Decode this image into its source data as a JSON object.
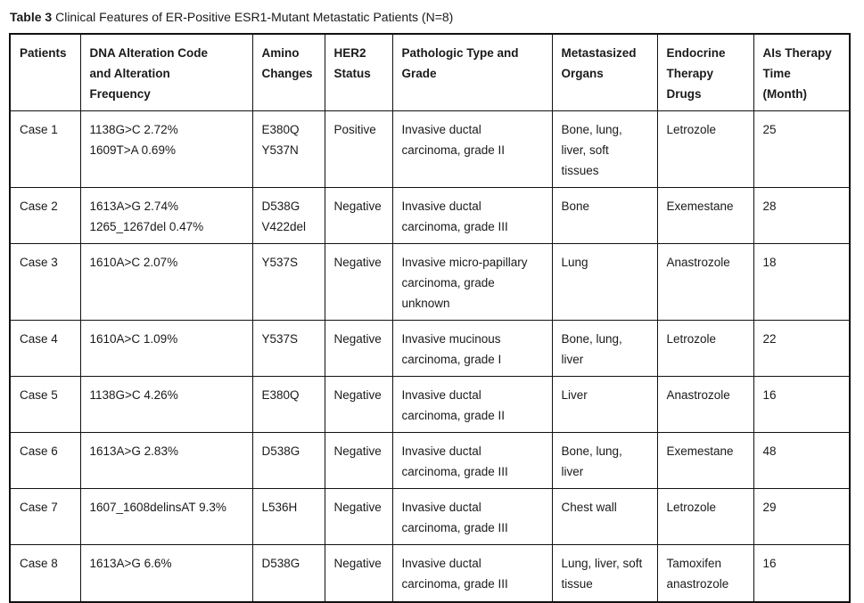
{
  "title": {
    "label": "Table 3",
    "text": "Clinical Features of ER-Positive ESR1-Mutant Metastatic Patients (N=8)"
  },
  "colors": {
    "border": "#111111",
    "text": "#1a1a1a",
    "background": "#ffffff"
  },
  "table": {
    "columns": [
      "Patients",
      "DNA Alteration Code\nand Alteration\nFrequency",
      "Amino\nChanges",
      "HER2\nStatus",
      "Pathologic Type and\nGrade",
      "Metastasized\nOrgans",
      "Endocrine\nTherapy\nDrugs",
      "AIs Therapy\nTime\n(Month)"
    ],
    "column_keys": [
      "patient",
      "dna",
      "amino",
      "her2",
      "pathologic",
      "organs",
      "drugs",
      "time"
    ],
    "rows": [
      {
        "patient": "Case 1",
        "dna": "1138G>C 2.72%\n1609T>A 0.69%",
        "amino": "E380Q\nY537N",
        "her2": "Positive",
        "pathologic": "Invasive ductal\ncarcinoma, grade II",
        "organs": "Bone, lung,\nliver, soft\ntissues",
        "drugs": "Letrozole",
        "time": "25"
      },
      {
        "patient": "Case 2",
        "dna": "1613A>G 2.74%\n1265_1267del 0.47%",
        "amino": "D538G\nV422del",
        "her2": "Negative",
        "pathologic": "Invasive ductal\ncarcinoma, grade III",
        "organs": "Bone",
        "drugs": "Exemestane",
        "time": "28"
      },
      {
        "patient": "Case 3",
        "dna": "1610A>C 2.07%",
        "amino": "Y537S",
        "her2": "Negative",
        "pathologic": "Invasive micro-papillary\ncarcinoma, grade\nunknown",
        "organs": "Lung",
        "drugs": "Anastrozole",
        "time": "18"
      },
      {
        "patient": "Case 4",
        "dna": "1610A>C 1.09%",
        "amino": "Y537S",
        "her2": "Negative",
        "pathologic": "Invasive mucinous\ncarcinoma, grade I",
        "organs": "Bone, lung,\nliver",
        "drugs": "Letrozole",
        "time": "22"
      },
      {
        "patient": "Case 5",
        "dna": "1138G>C 4.26%",
        "amino": "E380Q",
        "her2": "Negative",
        "pathologic": "Invasive ductal\ncarcinoma, grade II",
        "organs": "Liver",
        "drugs": "Anastrozole",
        "time": "16"
      },
      {
        "patient": "Case 6",
        "dna": "1613A>G 2.83%",
        "amino": "D538G",
        "her2": "Negative",
        "pathologic": "Invasive ductal\ncarcinoma, grade III",
        "organs": "Bone, lung,\nliver",
        "drugs": "Exemestane",
        "time": "48"
      },
      {
        "patient": "Case 7",
        "dna": "1607_1608delinsAT 9.3%",
        "amino": "L536H",
        "her2": "Negative",
        "pathologic": "Invasive ductal\ncarcinoma, grade III",
        "organs": "Chest wall",
        "drugs": "Letrozole",
        "time": "29"
      },
      {
        "patient": "Case 8",
        "dna": "1613A>G 6.6%",
        "amino": "D538G",
        "her2": "Negative",
        "pathologic": "Invasive ductal\ncarcinoma, grade III",
        "organs": "Lung, liver, soft\ntissue",
        "drugs": "Tamoxifen\nanastrozole",
        "time": "16"
      }
    ]
  }
}
